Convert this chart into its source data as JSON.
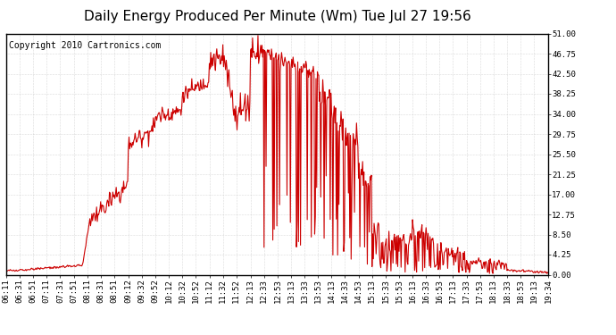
{
  "title": "Daily Energy Produced Per Minute (Wm) Tue Jul 27 19:56",
  "copyright": "Copyright 2010 Cartronics.com",
  "line_color": "#CC0000",
  "bg_color": "#FFFFFF",
  "plot_bg_color": "#FFFFFF",
  "grid_color": "#BBBBBB",
  "yticks": [
    0.0,
    4.25,
    8.5,
    12.75,
    17.0,
    21.25,
    25.5,
    29.75,
    34.0,
    38.25,
    42.5,
    46.75,
    51.0
  ],
  "ymax": 51.0,
  "ymin": 0.0,
  "xtick_labels": [
    "06:11",
    "06:31",
    "06:51",
    "07:11",
    "07:31",
    "07:51",
    "08:11",
    "08:31",
    "08:51",
    "09:12",
    "09:32",
    "09:52",
    "10:12",
    "10:32",
    "10:52",
    "11:12",
    "11:32",
    "11:52",
    "12:13",
    "12:33",
    "12:53",
    "13:13",
    "13:33",
    "13:53",
    "14:13",
    "14:33",
    "14:53",
    "15:13",
    "15:33",
    "15:53",
    "16:13",
    "16:33",
    "16:53",
    "17:13",
    "17:33",
    "17:53",
    "18:13",
    "18:33",
    "18:53",
    "19:13",
    "19:34"
  ],
  "title_fontsize": 11,
  "copyright_fontsize": 7,
  "axis_fontsize": 6.5,
  "line_width": 0.8
}
